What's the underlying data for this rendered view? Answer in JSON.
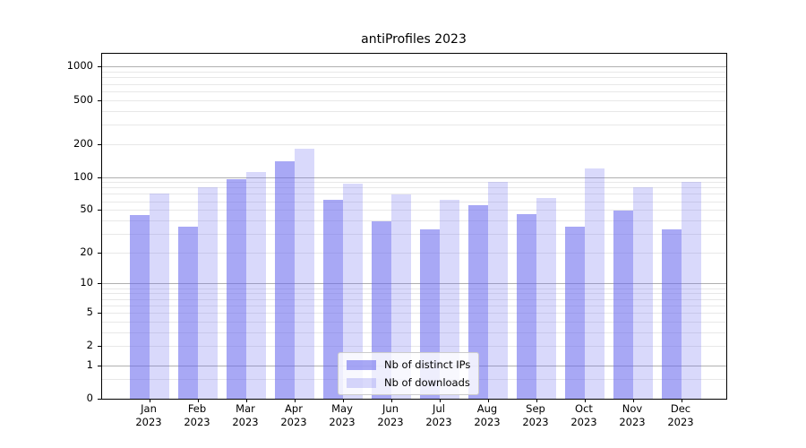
{
  "chart_data": {
    "type": "bar",
    "title": "antiProfiles 2023",
    "categories": [
      "Jan",
      "Feb",
      "Mar",
      "Apr",
      "May",
      "Jun",
      "Jul",
      "Aug",
      "Sep",
      "Oct",
      "Nov",
      "Dec"
    ],
    "x_year_label": "2023",
    "series": [
      {
        "key": "distinct-ips",
        "name": "Nb of distinct IPs",
        "values": [
          45,
          35,
          96,
          140,
          62,
          39,
          33,
          55,
          46,
          35,
          49,
          33
        ],
        "color": "rgba(102,102,238,0.57)"
      },
      {
        "key": "downloads",
        "name": "Nb of downloads",
        "values": [
          70,
          80,
          110,
          180,
          87,
          69,
          62,
          91,
          64,
          120,
          80,
          90
        ],
        "color": "rgba(102,102,238,0.25)"
      }
    ],
    "y_scale": "log1p",
    "y_ticks": [
      0,
      1,
      2,
      5,
      10,
      20,
      50,
      100,
      200,
      500,
      1000
    ],
    "ylim": [
      0,
      1300
    ],
    "grid": true,
    "legend_position": "lower center",
    "colors": {
      "bar_base": "#6666ee",
      "grid_major": "#b0b0b0",
      "grid_minor": "#e8e8e8",
      "axis": "#000000"
    }
  }
}
